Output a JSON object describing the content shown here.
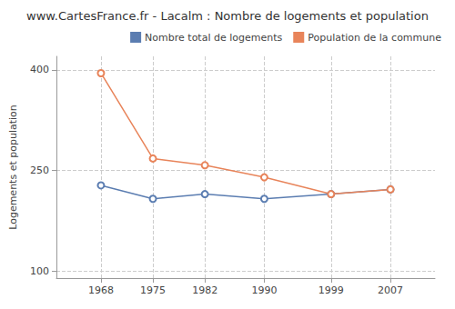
{
  "chart_data": {
    "type": "line",
    "title": "www.CartesFrance.fr - Lacalm : Nombre de logements et population",
    "ylabel": "Logements et population",
    "x": [
      1968,
      1975,
      1982,
      1990,
      1999,
      2007
    ],
    "series": [
      {
        "name": "Nombre total de logements",
        "color": "#5b7db1",
        "marker": "circle",
        "values": [
          228,
          208,
          215,
          208,
          215,
          222
        ]
      },
      {
        "name": "Population de la commune",
        "color": "#e8845a",
        "marker": "circle",
        "values": [
          395,
          268,
          258,
          240,
          215,
          222
        ]
      }
    ],
    "xlim": [
      1962,
      2013
    ],
    "xticks": [
      1968,
      1975,
      1982,
      1990,
      1999,
      2007
    ],
    "ylim": [
      90,
      420
    ],
    "yticks": [
      100,
      250,
      400
    ],
    "grid": true,
    "legend": "upper right"
  }
}
